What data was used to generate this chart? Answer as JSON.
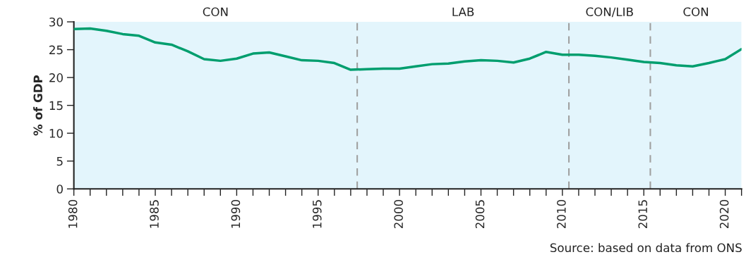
{
  "chart_data": {
    "type": "line",
    "ylabel": "% of GDP",
    "x": [
      1980,
      1981,
      1982,
      1983,
      1984,
      1985,
      1986,
      1987,
      1988,
      1989,
      1990,
      1991,
      1992,
      1993,
      1994,
      1995,
      1996,
      1997,
      1998,
      1999,
      2000,
      2001,
      2002,
      2003,
      2004,
      2005,
      2006,
      2007,
      2008,
      2009,
      2010,
      2011,
      2012,
      2013,
      2014,
      2015,
      2016,
      2017,
      2018,
      2019,
      2020,
      2021
    ],
    "series": [
      {
        "color": "#009e6e",
        "values": [
          28.7,
          28.8,
          28.4,
          27.8,
          27.5,
          26.3,
          25.9,
          24.7,
          23.3,
          23.0,
          23.4,
          24.3,
          24.5,
          23.8,
          23.1,
          23.0,
          22.6,
          21.4,
          21.5,
          21.6,
          21.6,
          22.0,
          22.4,
          22.5,
          22.9,
          23.1,
          23.0,
          22.7,
          23.4,
          24.6,
          24.1,
          24.1,
          23.9,
          23.6,
          23.2,
          22.8,
          22.6,
          22.2,
          22.0,
          22.6,
          23.3,
          25.1
        ]
      }
    ],
    "xlim": [
      1980,
      2021
    ],
    "ylim": [
      0,
      30
    ],
    "yticks": [
      0,
      5,
      10,
      15,
      20,
      25,
      30
    ],
    "xticks": [
      1980,
      {
        "value": 1981,
        "label": null
      },
      {
        "value": 1982,
        "label": null
      },
      {
        "value": 1983,
        "label": null
      },
      {
        "value": 1984,
        "label": null
      },
      1985,
      {
        "value": 1986,
        "label": null
      },
      {
        "value": 1987,
        "label": null
      },
      {
        "value": 1988,
        "label": null
      },
      {
        "value": 1989,
        "label": null
      },
      1990,
      {
        "value": 1991,
        "label": null
      },
      {
        "value": 1992,
        "label": null
      },
      {
        "value": 1993,
        "label": null
      },
      {
        "value": 1994,
        "label": null
      },
      1995,
      {
        "value": 1996,
        "label": null
      },
      {
        "value": 1997,
        "label": null
      },
      {
        "value": 1998,
        "label": null
      },
      {
        "value": 1999,
        "label": null
      },
      2000,
      {
        "value": 2001,
        "label": null
      },
      {
        "value": 2002,
        "label": null
      },
      {
        "value": 2003,
        "label": null
      },
      {
        "value": 2004,
        "label": null
      },
      2005,
      {
        "value": 2006,
        "label": null
      },
      {
        "value": 2007,
        "label": null
      },
      {
        "value": 2008,
        "label": null
      },
      {
        "value": 2009,
        "label": null
      },
      2010,
      {
        "value": 2011,
        "label": null
      },
      {
        "value": 2012,
        "label": null
      },
      {
        "value": 2013,
        "label": null
      },
      {
        "value": 2014,
        "label": null
      },
      2015,
      {
        "value": 2016,
        "label": null
      },
      {
        "value": 2017,
        "label": null
      },
      {
        "value": 2018,
        "label": null
      },
      {
        "value": 2019,
        "label": null
      },
      2020,
      {
        "value": 2021,
        "label": null
      }
    ],
    "bands": [
      {
        "axis": "x",
        "from": 1980,
        "to": 1997.4,
        "label": "CON",
        "color": "#e3f5fc"
      },
      {
        "axis": "x",
        "from": 1997.4,
        "to": 2010.4,
        "label": "LAB",
        "color": "#e3f5fc"
      },
      {
        "axis": "x",
        "from": 2010.4,
        "to": 2015.4,
        "label": "CON/LIB",
        "color": "#e3f5fc"
      },
      {
        "axis": "x",
        "from": 2015.4,
        "to": 2021,
        "label": "CON",
        "color": "#e3f5fc"
      }
    ],
    "ref_lines": [
      {
        "axis": "x",
        "value": 1997.4,
        "color": "#a0a0a0",
        "line_style": "dashed"
      },
      {
        "axis": "x",
        "value": 2010.4,
        "color": "#a0a0a0",
        "line_style": "dashed"
      },
      {
        "axis": "x",
        "value": 2015.4,
        "color": "#a0a0a0",
        "line_style": "dashed"
      }
    ],
    "annotations": [
      "Source: based on data from ONS"
    ],
    "grid": false,
    "line_style": "solid"
  }
}
